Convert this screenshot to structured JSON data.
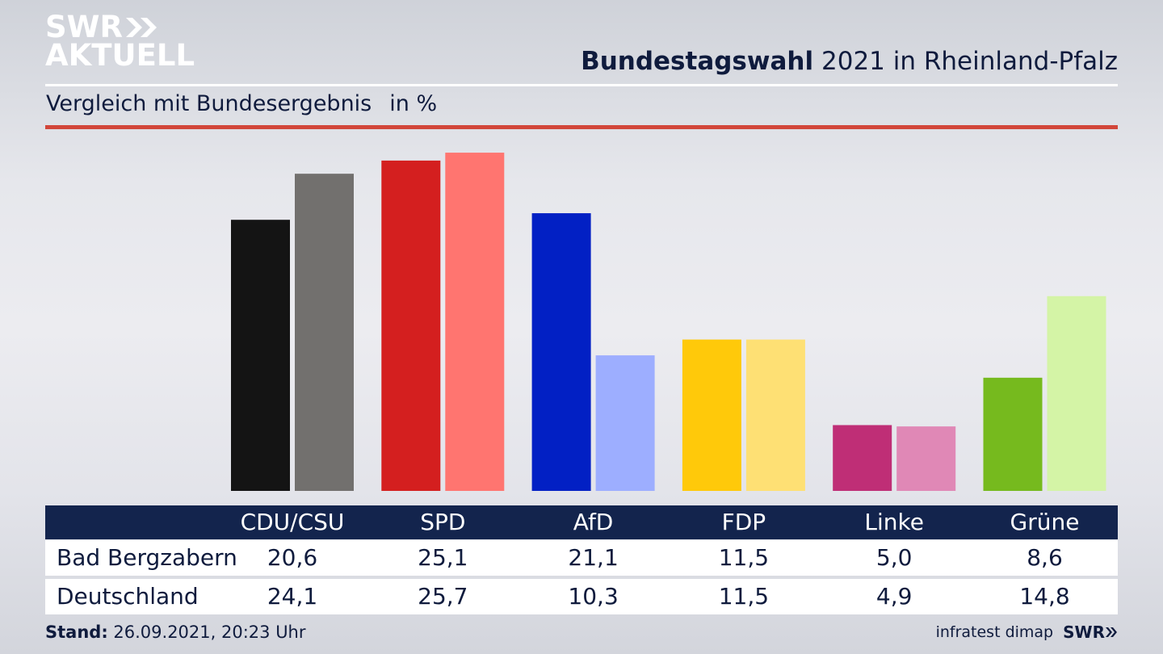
{
  "brand": {
    "logo_line1": "SWR",
    "logo_line2": "AKTUELL",
    "footer_logo": "SWR"
  },
  "header": {
    "title_bold": "Bundestagswahl",
    "title_rest": "2021 in Rheinland-Pfalz",
    "subtitle": "Vergleich mit Bundesergebnis",
    "unit": "in %"
  },
  "footer": {
    "stand_label": "Stand:",
    "stand_value": "26.09.2021, 20:23 Uhr",
    "source": "infratest dimap"
  },
  "colors": {
    "primary": [
      "#141414",
      "#d41f1f",
      "#0220c4",
      "#ffc90a",
      "#bf2e76",
      "#76ba1e"
    ],
    "secondary": [
      "#72706e",
      "#ff7570",
      "#9daeff",
      "#fee074",
      "#e088b6",
      "#d4f4a6"
    ]
  },
  "chart_data": {
    "type": "bar",
    "title": "Bundestagswahl 2021 in Rheinland-Pfalz",
    "subtitle": "Vergleich mit Bundesergebnis",
    "ylabel": "in %",
    "categories": [
      "CDU/CSU",
      "SPD",
      "AfD",
      "FDP",
      "Linke",
      "Grüne"
    ],
    "series": [
      {
        "name": "Bad Bergzabern",
        "values": [
          20.6,
          25.1,
          21.1,
          11.5,
          5.0,
          8.6
        ]
      },
      {
        "name": "Deutschland",
        "values": [
          24.1,
          25.7,
          10.3,
          11.5,
          4.9,
          14.8
        ]
      }
    ],
    "value_labels": [
      [
        "20,6",
        "25,1",
        "21,1",
        "11,5",
        "5,0",
        "8,6"
      ],
      [
        "24,1",
        "25,7",
        "10,3",
        "11,5",
        "4,9",
        "14,8"
      ]
    ],
    "grid": false,
    "legend": "table below chart"
  }
}
